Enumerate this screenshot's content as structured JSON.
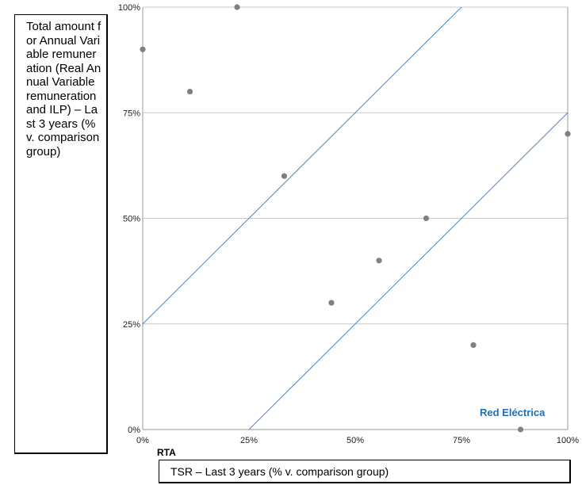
{
  "chart_data": {
    "type": "scatter",
    "ylabel": "Total amount for Annual Variable remuneration (Real Annual Variable remuneration and ILP) – Last 3 years (% v. comparison group)",
    "xlabel": "TSR – Last 3 years (% v. comparison group)",
    "hidden_xlabel": "RTA",
    "annotation": "Red Eléctrica",
    "xlim": [
      0,
      1
    ],
    "ylim": [
      0,
      1
    ],
    "x_ticks": [
      "0%",
      "25%",
      "50%",
      "75%",
      "100%"
    ],
    "y_ticks": [
      "0%",
      "25%",
      "50%",
      "75%",
      "100%"
    ],
    "grid": "horizontal",
    "points": [
      {
        "x": 0.0,
        "y": 0.9
      },
      {
        "x": 0.111,
        "y": 0.8
      },
      {
        "x": 0.222,
        "y": 1.0
      },
      {
        "x": 0.333,
        "y": 0.6
      },
      {
        "x": 0.444,
        "y": 0.3
      },
      {
        "x": 0.556,
        "y": 0.4
      },
      {
        "x": 0.667,
        "y": 0.5
      },
      {
        "x": 0.778,
        "y": 0.2
      },
      {
        "x": 0.889,
        "y": 0.0
      },
      {
        "x": 1.0,
        "y": 0.7
      }
    ],
    "lines": [
      {
        "x": [
          0,
          0.75
        ],
        "y": [
          0.25,
          1.0
        ]
      },
      {
        "x": [
          0.25,
          1.0
        ],
        "y": [
          0,
          0.75
        ]
      }
    ],
    "colors": {
      "points": "#808080",
      "lines": "#4a86c8",
      "grid": "#c8c8c8",
      "annotation": "#1f6fb8"
    }
  }
}
